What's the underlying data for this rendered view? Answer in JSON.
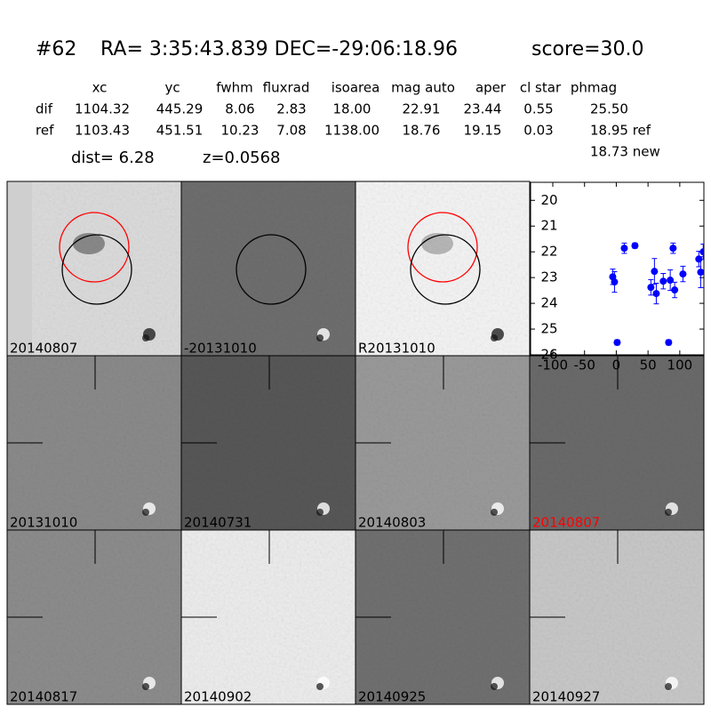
{
  "header": {
    "id": "#62",
    "coords": "RA= 3:35:43.839 DEC=-29:06:18.96",
    "score": "score=30.0"
  },
  "table": {
    "columns": [
      "xc",
      "yc",
      "fwhm",
      "fluxrad",
      "isoarea",
      "mag auto",
      "aper",
      "cl star",
      "phmag"
    ],
    "rows": [
      [
        "dif",
        "1104.32",
        "445.29",
        "8.06",
        "2.83",
        "18.00",
        "22.91",
        "23.44",
        "0.55",
        "25.50"
      ],
      [
        "ref",
        "1103.43",
        "451.51",
        "10.23",
        "7.08",
        "1138.00",
        "18.76",
        "19.15",
        "0.03",
        "18.95 ref"
      ]
    ],
    "extra": "18.73 new"
  },
  "dist": "dist=  6.28",
  "z": "z=0.0568",
  "panels": [
    {
      "label": "20140807"
    },
    {
      "label": "-20131010"
    },
    {
      "label": "R20131010"
    },
    {
      "label": "20131010"
    },
    {
      "label": "20140731"
    },
    {
      "label": "20140803"
    },
    {
      "label": "20140807",
      "label_color": "#ff0000"
    },
    {
      "label": "20140817"
    },
    {
      "label": "20140902"
    },
    {
      "label": "20140925"
    },
    {
      "label": "20140927"
    }
  ],
  "chart_data": {
    "type": "scatter",
    "color": "#0000ff",
    "x": [
      -5.6,
      -2.8,
      1.4,
      12.6,
      29.4,
      54.5,
      60.1,
      63,
      74,
      82.5,
      85,
      89.5,
      92,
      105,
      130,
      133,
      137
    ],
    "values": [
      22.97,
      23.17,
      25.52,
      21.86,
      21.76,
      23.38,
      22.76,
      23.62,
      23.14,
      25.52,
      23.1,
      21.86,
      23.48,
      22.86,
      22.28,
      22.79,
      22.0
    ],
    "errors": [
      0.3,
      0.4,
      0.1,
      0.2,
      0.1,
      0.3,
      0.5,
      0.4,
      0.3,
      0.1,
      0.4,
      0.2,
      0.3,
      0.3,
      0.3,
      0.6,
      0.3
    ],
    "xlim": [
      -135,
      138
    ],
    "ylim": [
      26,
      19.3
    ],
    "xticks": [
      -100,
      -50,
      0,
      50,
      100
    ],
    "yticks": [
      20,
      21,
      22,
      23,
      24,
      25,
      26
    ]
  }
}
